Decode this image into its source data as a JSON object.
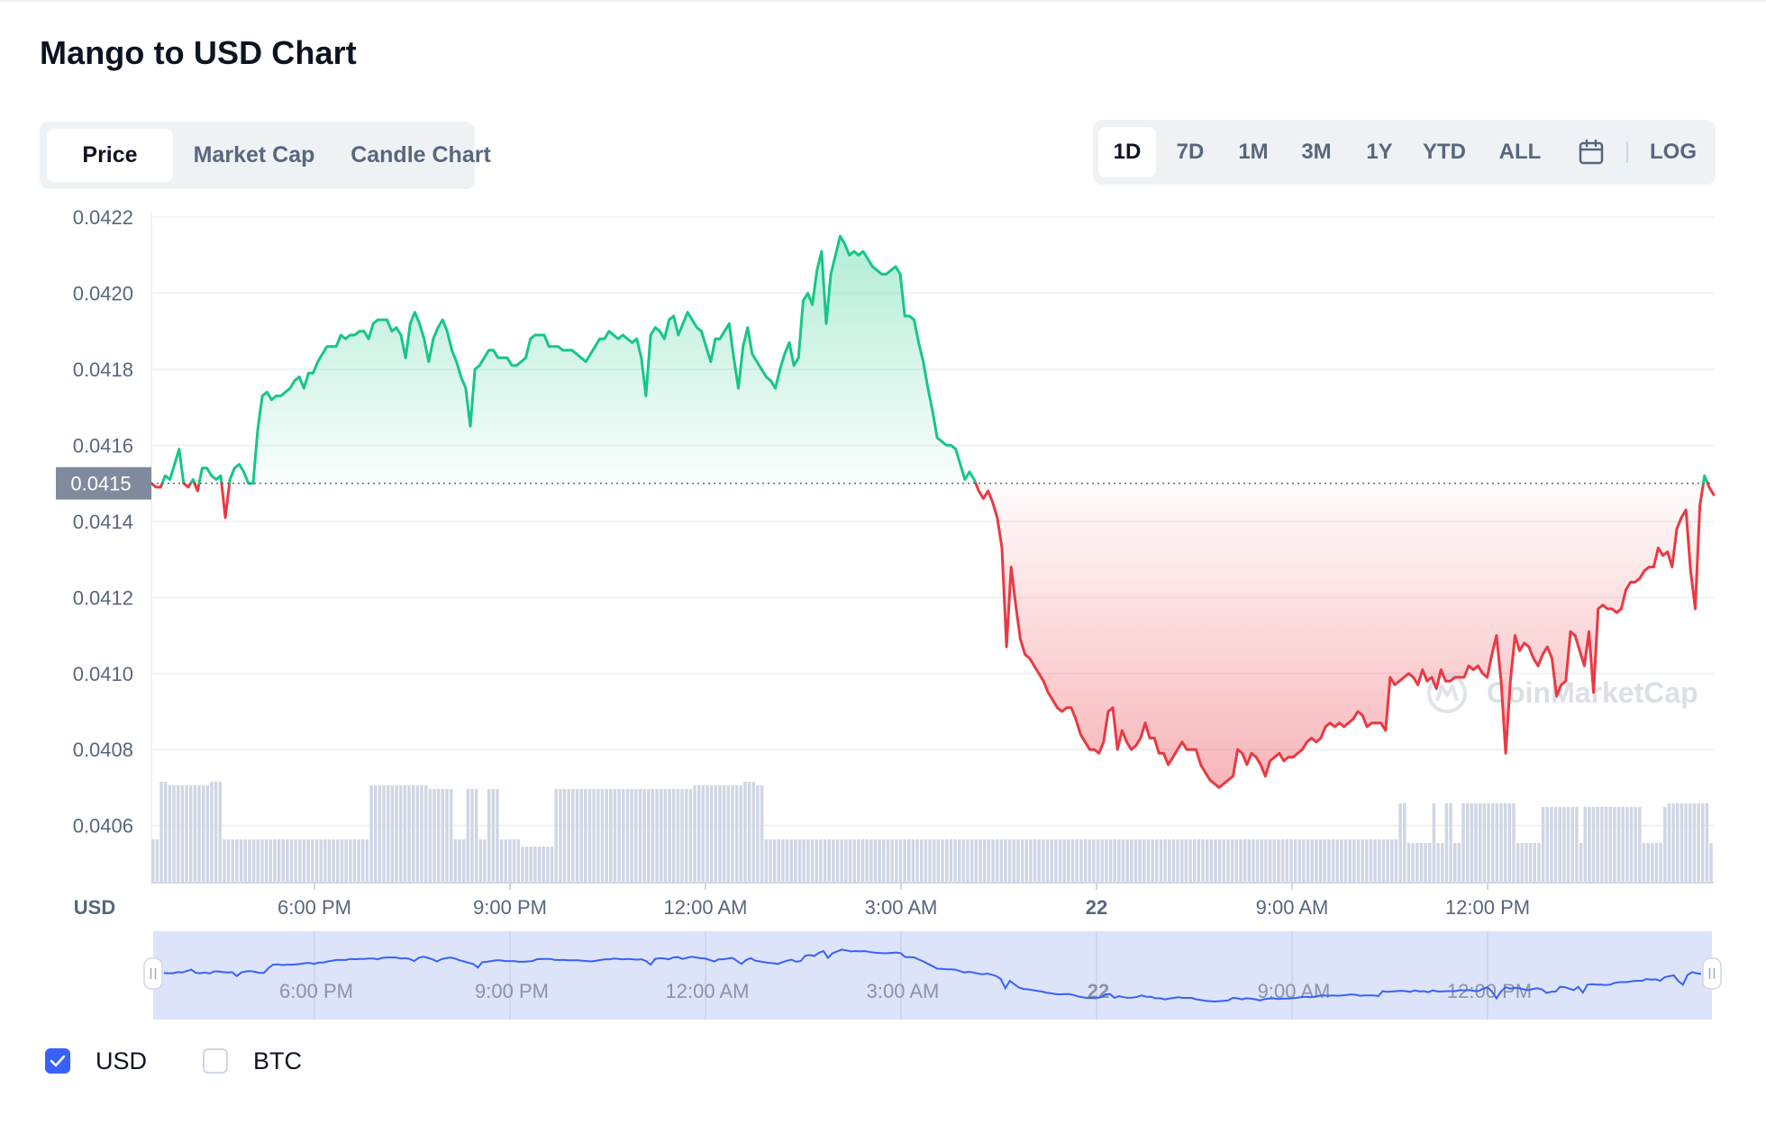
{
  "title": "Mango to USD Chart",
  "tabs": [
    {
      "label": "Price",
      "active": true
    },
    {
      "label": "Market Cap",
      "active": false
    },
    {
      "label": "Candle Chart",
      "active": false
    }
  ],
  "ranges": [
    {
      "label": "1D",
      "active": true
    },
    {
      "label": "7D",
      "active": false
    },
    {
      "label": "1M",
      "active": false
    },
    {
      "label": "3M",
      "active": false
    },
    {
      "label": "1Y",
      "active": false
    },
    {
      "label": "YTD",
      "active": false
    },
    {
      "label": "ALL",
      "active": false
    }
  ],
  "range_icon": "calendar-icon",
  "log_label": "LOG",
  "watermark": "CoinMarketCap",
  "currency_label": "USD",
  "legend": [
    {
      "label": "USD",
      "checked": true
    },
    {
      "label": "BTC",
      "checked": false
    }
  ],
  "colors": {
    "up": "#16c784",
    "down": "#ea3943",
    "volume": "#cfd6e4",
    "navigator_fill": "#dde3f8",
    "navigator_line": "#3861fb",
    "accent": "#3861fb"
  },
  "chart_data": {
    "type": "line",
    "ylim": [
      0.04045,
      0.04225
    ],
    "y_ticks": [
      "0.0422",
      "0.0420",
      "0.0418",
      "0.0416",
      "0.0414",
      "0.0412",
      "0.0410",
      "0.0408",
      "0.0406"
    ],
    "x_ticks": [
      "6:00 PM",
      "9:00 PM",
      "12:00 AM",
      "3:00 AM",
      "22",
      "9:00 AM",
      "12:00 PM"
    ],
    "baseline_value": 0.0415,
    "baseline_label": "0.0415",
    "series": [
      {
        "values": [
          0.0415,
          0.04149,
          0.04149,
          0.04152,
          0.04151,
          0.04155,
          0.04159,
          0.0415,
          0.04149,
          0.04151,
          0.04148,
          0.04154,
          0.04154,
          0.04152,
          0.04151,
          0.04152,
          0.04141,
          0.04151,
          0.04154,
          0.04155,
          0.04153,
          0.0415,
          0.0415,
          0.04164,
          0.04173,
          0.04174,
          0.04172,
          0.04173,
          0.04173,
          0.04174,
          0.04175,
          0.04177,
          0.04178,
          0.04175,
          0.04179,
          0.04179,
          0.04182,
          0.04184,
          0.04186,
          0.04186,
          0.04186,
          0.04189,
          0.04188,
          0.04189,
          0.04189,
          0.0419,
          0.0419,
          0.04188,
          0.04192,
          0.04193,
          0.04193,
          0.04193,
          0.0419,
          0.04191,
          0.04189,
          0.04183,
          0.04192,
          0.04195,
          0.04192,
          0.04188,
          0.04182,
          0.04188,
          0.04191,
          0.04193,
          0.0419,
          0.04185,
          0.04182,
          0.04178,
          0.04175,
          0.04165,
          0.0418,
          0.04181,
          0.04183,
          0.04185,
          0.04185,
          0.04183,
          0.04183,
          0.04183,
          0.04181,
          0.04181,
          0.04182,
          0.04183,
          0.04188,
          0.04189,
          0.04189,
          0.04189,
          0.04186,
          0.04186,
          0.04186,
          0.04185,
          0.04185,
          0.04185,
          0.04184,
          0.04183,
          0.04182,
          0.04184,
          0.04186,
          0.04188,
          0.04188,
          0.0419,
          0.04189,
          0.04188,
          0.04189,
          0.04188,
          0.04187,
          0.04188,
          0.04183,
          0.04173,
          0.04189,
          0.04191,
          0.0419,
          0.04188,
          0.04193,
          0.04194,
          0.04189,
          0.04192,
          0.04195,
          0.04193,
          0.04191,
          0.0419,
          0.04186,
          0.04182,
          0.04188,
          0.04188,
          0.0419,
          0.04192,
          0.04183,
          0.04175,
          0.04186,
          0.04191,
          0.04184,
          0.04182,
          0.0418,
          0.04178,
          0.04177,
          0.04175,
          0.0418,
          0.04184,
          0.04187,
          0.04181,
          0.04183,
          0.04198,
          0.042,
          0.04197,
          0.04206,
          0.04211,
          0.04192,
          0.04205,
          0.0421,
          0.04215,
          0.04213,
          0.0421,
          0.04211,
          0.0421,
          0.04211,
          0.04209,
          0.04207,
          0.04206,
          0.04205,
          0.04205,
          0.04206,
          0.04207,
          0.04205,
          0.04194,
          0.04194,
          0.04193,
          0.04187,
          0.04182,
          0.04175,
          0.04169,
          0.04162,
          0.04161,
          0.0416,
          0.0416,
          0.04159,
          0.04155,
          0.04151,
          0.04153,
          0.04151,
          0.04148,
          0.04146,
          0.04148,
          0.04145,
          0.04141,
          0.04133,
          0.04107,
          0.04128,
          0.04118,
          0.04109,
          0.04105,
          0.04104,
          0.04102,
          0.041,
          0.04098,
          0.04095,
          0.04093,
          0.04091,
          0.0409,
          0.04091,
          0.04091,
          0.04088,
          0.04084,
          0.04082,
          0.0408,
          0.0408,
          0.04079,
          0.04082,
          0.0409,
          0.04091,
          0.0408,
          0.04085,
          0.04082,
          0.0408,
          0.04081,
          0.04083,
          0.04087,
          0.04083,
          0.04083,
          0.04079,
          0.04079,
          0.04076,
          0.04078,
          0.0408,
          0.04082,
          0.0408,
          0.0408,
          0.0408,
          0.04076,
          0.04074,
          0.04072,
          0.04071,
          0.0407,
          0.04071,
          0.04072,
          0.04073,
          0.0408,
          0.04079,
          0.04076,
          0.04079,
          0.04078,
          0.04076,
          0.04073,
          0.04077,
          0.04078,
          0.04079,
          0.04077,
          0.04078,
          0.04078,
          0.04079,
          0.0408,
          0.04082,
          0.04083,
          0.04082,
          0.04083,
          0.04086,
          0.04087,
          0.04086,
          0.04087,
          0.04086,
          0.04087,
          0.04088,
          0.0409,
          0.04089,
          0.04086,
          0.04087,
          0.04087,
          0.04087,
          0.04085,
          0.04099,
          0.04097,
          0.04098,
          0.04099,
          0.041,
          0.04099,
          0.04097,
          0.04101,
          0.04098,
          0.04099,
          0.04096,
          0.04101,
          0.04098,
          0.04098,
          0.04099,
          0.04099,
          0.04099,
          0.04102,
          0.04101,
          0.04102,
          0.041,
          0.04099,
          0.04105,
          0.0411,
          0.04098,
          0.04079,
          0.04098,
          0.0411,
          0.04106,
          0.04108,
          0.04107,
          0.04104,
          0.04102,
          0.04105,
          0.04107,
          0.04104,
          0.04094,
          0.04097,
          0.04098,
          0.04111,
          0.0411,
          0.04106,
          0.04102,
          0.04111,
          0.04095,
          0.04117,
          0.04118,
          0.04117,
          0.04117,
          0.04116,
          0.04117,
          0.04122,
          0.04124,
          0.04124,
          0.04125,
          0.04127,
          0.04128,
          0.04128,
          0.04133,
          0.04131,
          0.04132,
          0.04128,
          0.04138,
          0.04141,
          0.04143,
          0.04127,
          0.04117,
          0.04144,
          0.04152,
          0.04149,
          0.04147
        ]
      }
    ],
    "volume": [
      0.12,
      0.12,
      0.28,
      0.28,
      0.27,
      0.27,
      0.27,
      0.27,
      0.27,
      0.27,
      0.27,
      0.27,
      0.27,
      0.27,
      0.28,
      0.28,
      0.28,
      0.12,
      0.12,
      0.12,
      0.12,
      0.12,
      0.12,
      0.12,
      0.12,
      0.12,
      0.12,
      0.12,
      0.12,
      0.12,
      0.12,
      0.12,
      0.12,
      0.12,
      0.12,
      0.12,
      0.12,
      0.12,
      0.12,
      0.12,
      0.12,
      0.12,
      0.12,
      0.12,
      0.12,
      0.12,
      0.12,
      0.12,
      0.12,
      0.12,
      0.12,
      0.12,
      0.27,
      0.27,
      0.27,
      0.27,
      0.27,
      0.27,
      0.27,
      0.27,
      0.27,
      0.27,
      0.27,
      0.27,
      0.27,
      0.27,
      0.26,
      0.26,
      0.26,
      0.26,
      0.26,
      0.26,
      0.12,
      0.12,
      0.12,
      0.26,
      0.26,
      0.26,
      0.12,
      0.12,
      0.26,
      0.26,
      0.26,
      0.12,
      0.12,
      0.12,
      0.12,
      0.12,
      0.1,
      0.1,
      0.1,
      0.1,
      0.1,
      0.1,
      0.1,
      0.1,
      0.26,
      0.26,
      0.26,
      0.26,
      0.26,
      0.26,
      0.26,
      0.26,
      0.26,
      0.26,
      0.26,
      0.26,
      0.26,
      0.26,
      0.26,
      0.26,
      0.26,
      0.26,
      0.26,
      0.26,
      0.26,
      0.26,
      0.26,
      0.26,
      0.26,
      0.26,
      0.26,
      0.26,
      0.26,
      0.26,
      0.26,
      0.26,
      0.26,
      0.27,
      0.27,
      0.27,
      0.27,
      0.27,
      0.27,
      0.27,
      0.27,
      0.27,
      0.27,
      0.27,
      0.27,
      0.28,
      0.28,
      0.28,
      0.27,
      0.27,
      0.12,
      0.12,
      0.12,
      0.12,
      0.12,
      0.12,
      0.12,
      0.12,
      0.12,
      0.12,
      0.12,
      0.12,
      0.12,
      0.12,
      0.12,
      0.12,
      0.12,
      0.12,
      0.12,
      0.12,
      0.12,
      0.12,
      0.12,
      0.12,
      0.12,
      0.12,
      0.12,
      0.12,
      0.12,
      0.12,
      0.12,
      0.12,
      0.12,
      0.12,
      0.12,
      0.12,
      0.12,
      0.12,
      0.12,
      0.12,
      0.12,
      0.12,
      0.12,
      0.12,
      0.12,
      0.12,
      0.12,
      0.12,
      0.12,
      0.12,
      0.12,
      0.12,
      0.12,
      0.12,
      0.12,
      0.12,
      0.12,
      0.12,
      0.12,
      0.12,
      0.12,
      0.12,
      0.12,
      0.12,
      0.12,
      0.12,
      0.12,
      0.12,
      0.12,
      0.12,
      0.12,
      0.12,
      0.12,
      0.12,
      0.12,
      0.12,
      0.12,
      0.12,
      0.12,
      0.12,
      0.12,
      0.12,
      0.12,
      0.12,
      0.12,
      0.12,
      0.12,
      0.12,
      0.12,
      0.12,
      0.12,
      0.12,
      0.12,
      0.12,
      0.12,
      0.12,
      0.12,
      0.12,
      0.12,
      0.12,
      0.12,
      0.12,
      0.12,
      0.12,
      0.12,
      0.12,
      0.12,
      0.12,
      0.12,
      0.12,
      0.12,
      0.12,
      0.12,
      0.12,
      0.12,
      0.12,
      0.12,
      0.12,
      0.12,
      0.12,
      0.12,
      0.12,
      0.12,
      0.12,
      0.12,
      0.12,
      0.12,
      0.12,
      0.12,
      0.12,
      0.12,
      0.12,
      0.12,
      0.12,
      0.12,
      0.12,
      0.12,
      0.12,
      0.12,
      0.12,
      0.12,
      0.12,
      0.12,
      0.12,
      0.12,
      0.12,
      0.12,
      0.12,
      0.12,
      0.12,
      0.12,
      0.22,
      0.22,
      0.11,
      0.11,
      0.11,
      0.11,
      0.11,
      0.11,
      0.22,
      0.11,
      0.11,
      0.22,
      0.22,
      0.11,
      0.11,
      0.22,
      0.22,
      0.22,
      0.22,
      0.22,
      0.22,
      0.22,
      0.22,
      0.22,
      0.22,
      0.22,
      0.22,
      0.22,
      0.11,
      0.11,
      0.11,
      0.11,
      0.11,
      0.11,
      0.21,
      0.21,
      0.21,
      0.21,
      0.21,
      0.21,
      0.21,
      0.21,
      0.21,
      0.11,
      0.21,
      0.21,
      0.21,
      0.21,
      0.21,
      0.21,
      0.21,
      0.21,
      0.21,
      0.21,
      0.21,
      0.21,
      0.21,
      0.21,
      0.11,
      0.11,
      0.11,
      0.11,
      0.11,
      0.21,
      0.22,
      0.22,
      0.22,
      0.22,
      0.22,
      0.22,
      0.22,
      0.22,
      0.22,
      0.22,
      0.11
    ]
  }
}
